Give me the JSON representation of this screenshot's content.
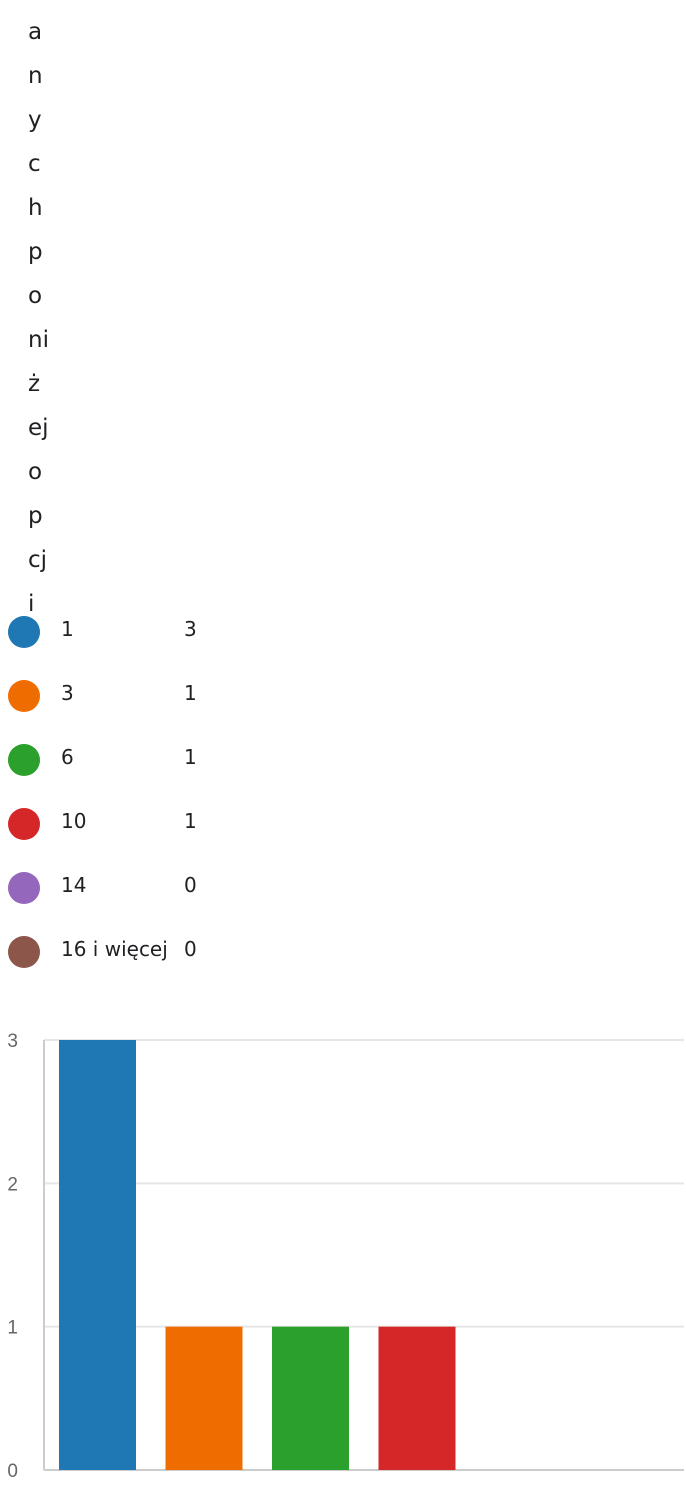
{
  "question_fragments": [
    "a",
    "n",
    "y",
    "c",
    "h",
    "p",
    "o",
    "ni",
    "ż",
    "ej",
    "o",
    "p",
    "cj",
    "i"
  ],
  "legend": [
    {
      "label": "1",
      "count": "3",
      "color": "#1f77b4"
    },
    {
      "label": "3",
      "count": "1",
      "color": "#ef6c00"
    },
    {
      "label": "6",
      "count": "1",
      "color": "#2ca02c"
    },
    {
      "label": "10",
      "count": "1",
      "color": "#d62728"
    },
    {
      "label": "14",
      "count": "0",
      "color": "#9467bd"
    },
    {
      "label": "16 i więcej",
      "count": "0",
      "color": "#8c564b"
    }
  ],
  "chart_data": {
    "type": "bar",
    "categories": [
      "1",
      "3",
      "6",
      "10",
      "14",
      "16 i więcej"
    ],
    "values": [
      3,
      1,
      1,
      1,
      0,
      0
    ],
    "colors": [
      "#1f77b4",
      "#ef6c00",
      "#2ca02c",
      "#d62728",
      "#9467bd",
      "#8c564b"
    ],
    "y_ticks": [
      0,
      1,
      2,
      3
    ],
    "ylim": [
      0,
      3
    ],
    "grid": true,
    "legend_placement": "top"
  }
}
